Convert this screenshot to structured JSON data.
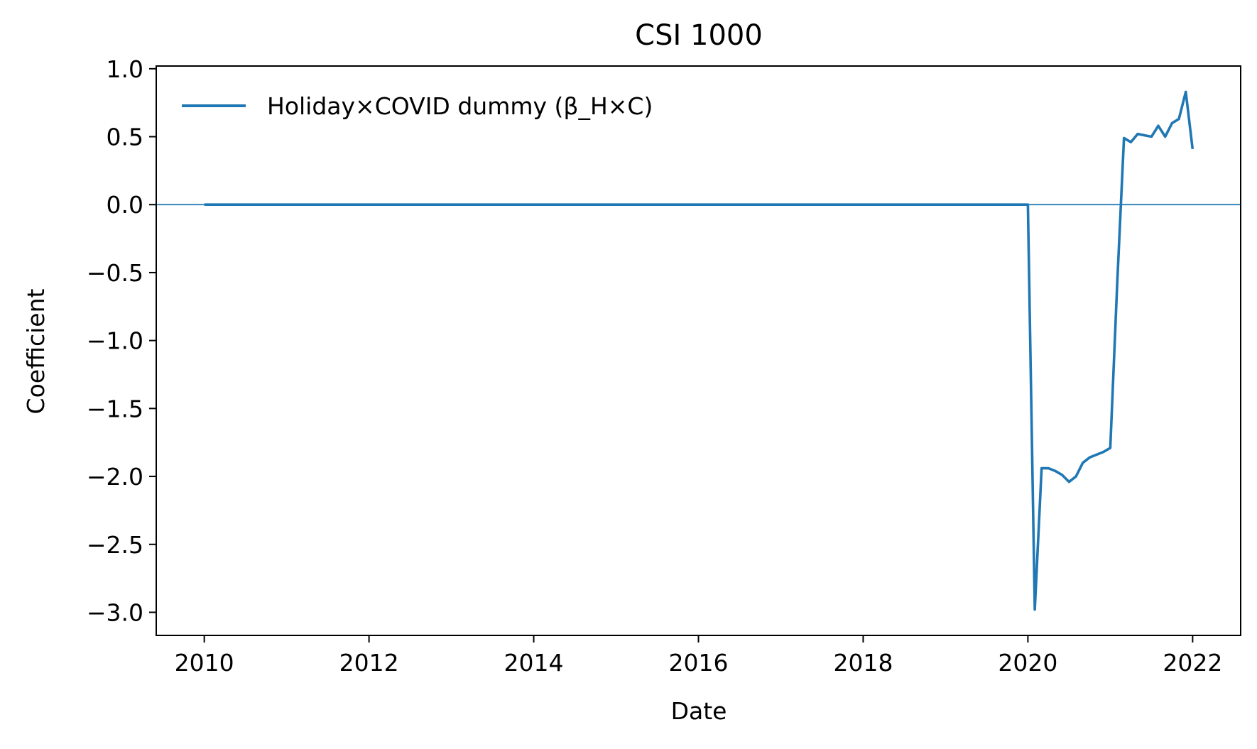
{
  "chart_data": {
    "type": "line",
    "title": "CSI 1000",
    "xlabel": "Date",
    "ylabel": "Coefficient",
    "x_ticks": [
      "2010",
      "2012",
      "2014",
      "2016",
      "2018",
      "2020",
      "2022"
    ],
    "y_ticks": [
      "1.0",
      "0.5",
      "0.0",
      "−0.5",
      "−1.0",
      "−1.5",
      "−2.0",
      "−2.5",
      "−3.0"
    ],
    "xlim": [
      "2009-06",
      "2022-08"
    ],
    "ylim": [
      -3.17,
      1.02
    ],
    "grid": false,
    "legend_position": "top-left",
    "reference_line": {
      "y": 0.0,
      "color": "#1f77b4"
    },
    "series": [
      {
        "name": "Holiday×COVID dummy (β_H×C)",
        "color": "#1f77b4",
        "points": [
          {
            "x": "2010-01",
            "y": 0.0
          },
          {
            "x": "2012-01",
            "y": 0.0
          },
          {
            "x": "2014-01",
            "y": 0.0
          },
          {
            "x": "2016-01",
            "y": 0.0
          },
          {
            "x": "2018-01",
            "y": 0.0
          },
          {
            "x": "2020-01",
            "y": 0.0
          },
          {
            "x": "2020-02",
            "y": -2.98
          },
          {
            "x": "2020-03",
            "y": -1.94
          },
          {
            "x": "2020-04",
            "y": -1.94
          },
          {
            "x": "2020-05",
            "y": -1.96
          },
          {
            "x": "2020-06",
            "y": -1.99
          },
          {
            "x": "2020-07",
            "y": -2.04
          },
          {
            "x": "2020-08",
            "y": -2.0
          },
          {
            "x": "2020-09",
            "y": -1.9
          },
          {
            "x": "2020-10",
            "y": -1.86
          },
          {
            "x": "2020-11",
            "y": -1.84
          },
          {
            "x": "2020-12",
            "y": -1.82
          },
          {
            "x": "2021-01",
            "y": -1.79
          },
          {
            "x": "2021-02",
            "y": -0.6
          },
          {
            "x": "2021-03",
            "y": 0.49
          },
          {
            "x": "2021-04",
            "y": 0.46
          },
          {
            "x": "2021-05",
            "y": 0.52
          },
          {
            "x": "2021-06",
            "y": 0.51
          },
          {
            "x": "2021-07",
            "y": 0.5
          },
          {
            "x": "2021-08",
            "y": 0.58
          },
          {
            "x": "2021-09",
            "y": 0.5
          },
          {
            "x": "2021-10",
            "y": 0.6
          },
          {
            "x": "2021-11",
            "y": 0.63
          },
          {
            "x": "2021-12",
            "y": 0.83
          },
          {
            "x": "2022-01",
            "y": 0.41
          }
        ]
      }
    ]
  }
}
